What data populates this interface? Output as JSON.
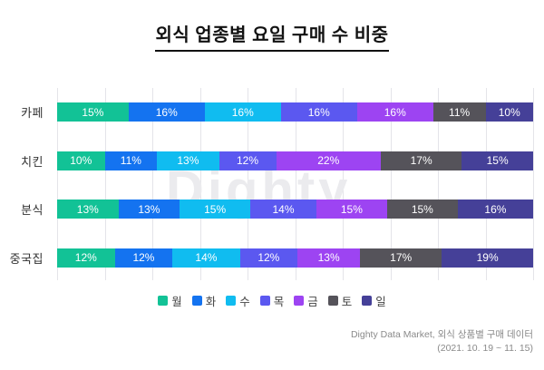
{
  "watermark": "Dighty",
  "source": {
    "line1": "Dighty Data Market, 외식 상품별 구매 데이터",
    "line2": "(2021. 10. 19 ~ 11. 15)"
  },
  "colors": {
    "title": "#111111",
    "grid": "#E4E4E9",
    "category_label": "#333333",
    "value_label": "#FFFFFF",
    "legend_text": "#444444",
    "source_text": "#8A8A8A",
    "watermark": "#EBEBEE"
  },
  "chart_data": {
    "type": "bar",
    "stacked": true,
    "orientation": "horizontal",
    "title": "외식 업종별 요일 구매 수 비중",
    "xlabel": "",
    "ylabel": "",
    "xlim": [
      0,
      100
    ],
    "grid": true,
    "gridline_step_percent": 10,
    "legend_position": "bottom",
    "value_suffix": "%",
    "categories": [
      "카페",
      "치킨",
      "분식",
      "중국집"
    ],
    "series": [
      {
        "name": "월",
        "color": "#12C296",
        "values": [
          15,
          10,
          13,
          12
        ]
      },
      {
        "name": "화",
        "color": "#1473F0",
        "values": [
          16,
          11,
          13,
          12
        ]
      },
      {
        "name": "수",
        "color": "#10BCF0",
        "values": [
          16,
          13,
          15,
          14
        ]
      },
      {
        "name": "목",
        "color": "#5B58F0",
        "values": [
          16,
          12,
          14,
          12
        ]
      },
      {
        "name": "금",
        "color": "#9D44F2",
        "values": [
          16,
          22,
          15,
          13
        ]
      },
      {
        "name": "토",
        "color": "#55535A",
        "values": [
          11,
          17,
          15,
          17
        ]
      },
      {
        "name": "일",
        "color": "#454098",
        "values": [
          10,
          15,
          16,
          19
        ]
      }
    ]
  }
}
